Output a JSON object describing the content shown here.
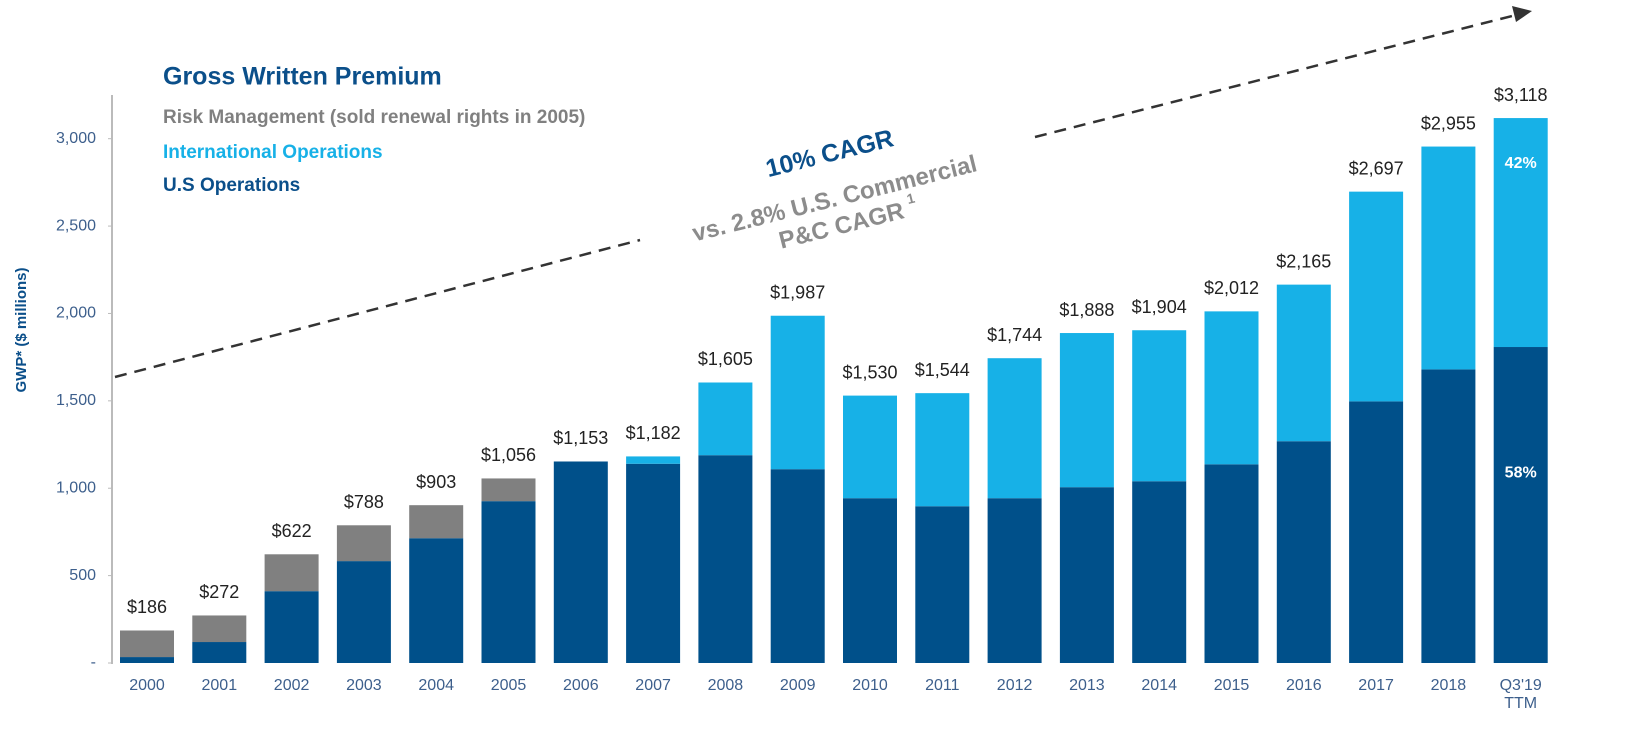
{
  "chart_data": {
    "type": "stacked_bar",
    "title": "Gross Written Premium",
    "y_label": "GWP* ($ millions)",
    "categories": [
      "2000",
      "2001",
      "2002",
      "2003",
      "2004",
      "2005",
      "2006",
      "2007",
      "2008",
      "2009",
      "2010",
      "2011",
      "2012",
      "2013",
      "2014",
      "2015",
      "2016",
      "2017",
      "2018",
      "Q3'19 TTM"
    ],
    "series": [
      {
        "name": "U.S Operations",
        "color": "#00508a",
        "values": [
          34,
          120,
          411,
          583,
          714,
          926,
          1153,
          1140,
          1189,
          1109,
          943,
          897,
          943,
          1006,
          1040,
          1137,
          1269,
          1497,
          1680,
          1808
        ]
      },
      {
        "name": "International Operations",
        "color": "#17b1e7",
        "values": [
          0,
          0,
          0,
          0,
          0,
          0,
          0,
          42,
          416,
          878,
          587,
          647,
          801,
          882,
          864,
          875,
          896,
          1200,
          1275,
          1310
        ]
      },
      {
        "name": "Risk Management (sold renewal rights in 2005)",
        "color": "#808080",
        "values": [
          152,
          152,
          211,
          205,
          189,
          130,
          0,
          0,
          0,
          0,
          0,
          0,
          0,
          0,
          0,
          0,
          0,
          0,
          0,
          0
        ]
      }
    ],
    "totals": {
      "values": [
        186,
        272,
        622,
        788,
        903,
        1056,
        1153,
        1182,
        1605,
        1987,
        1530,
        1544,
        1744,
        1888,
        1904,
        2012,
        2165,
        2697,
        2955,
        3118
      ],
      "value_labels": [
        "$186",
        "$272",
        "$622",
        "$788",
        "$903",
        "$1,056",
        "$1,153",
        "$1,182",
        "$1,605",
        "$1,987",
        "$1,530",
        "$1,544",
        "$1,744",
        "$1,888",
        "$1,904",
        "$2,012",
        "$2,165",
        "$2,697",
        "$2,955",
        "$3,118"
      ]
    },
    "share_labels": {
      "values": [
        58,
        42
      ],
      "value_labels": [
        "58%",
        "42%"
      ]
    },
    "annotations": {
      "cagr": "10% CAGR",
      "comparison": [
        "vs. 2.8% U.S. Commercial",
        "P&C CAGR"
      ],
      "footnote": "1"
    },
    "ylim": [
      0,
      3250
    ],
    "yticks": [
      {
        "value": 0,
        "label": "-"
      },
      500,
      {
        "value": 1000,
        "label": "1,000"
      },
      {
        "value": 1500,
        "label": "1,500"
      },
      {
        "value": 2000,
        "label": "2,000"
      },
      {
        "value": 2500,
        "label": "2,500"
      },
      {
        "value": 3000,
        "label": "3,000"
      }
    ]
  }
}
